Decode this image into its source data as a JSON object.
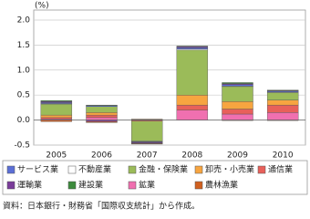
{
  "chart_data": {
    "type": "stacked_bar",
    "unit_label": "(%)",
    "categories": [
      "2005",
      "2006",
      "2007",
      "2008",
      "2009",
      "2010"
    ],
    "series": [
      {
        "name": "サービス業",
        "color": "#5b6fd6",
        "values": [
          0.02,
          0.02,
          -0.01,
          0.03,
          0.03,
          0.02
        ]
      },
      {
        "name": "不動産業",
        "color": "#ffffff",
        "values": [
          0.01,
          0.0,
          -0.01,
          0.02,
          0.01,
          0.01
        ]
      },
      {
        "name": "金融・保険業",
        "color": "#9bbb59",
        "values": [
          0.22,
          0.12,
          -0.4,
          0.9,
          0.3,
          0.15
        ]
      },
      {
        "name": "卸売・小売業",
        "color": "#f7a540",
        "values": [
          0.05,
          0.05,
          0.01,
          0.2,
          0.15,
          0.1
        ]
      },
      {
        "name": "通信業",
        "color": "#e8605a",
        "values": [
          0.03,
          0.05,
          -0.02,
          0.1,
          0.1,
          0.15
        ]
      },
      {
        "name": "運輸業",
        "color": "#7a3c9a",
        "values": [
          0.02,
          -0.03,
          -0.02,
          0.02,
          0.02,
          0.01
        ]
      },
      {
        "name": "建設業",
        "color": "#3c8a3c",
        "values": [
          0.02,
          0.01,
          -0.01,
          0.01,
          0.02,
          0.01
        ]
      },
      {
        "name": "鉱業",
        "color": "#f070b0",
        "values": [
          0.02,
          0.05,
          0.01,
          0.2,
          0.12,
          0.15
        ]
      },
      {
        "name": "農林漁業",
        "color": "#d06020",
        "values": [
          -0.03,
          -0.02,
          -0.01,
          0.0,
          -0.01,
          -0.01
        ]
      }
    ],
    "ylim": [
      -0.5,
      2.2
    ],
    "yticks": [
      -0.5,
      {
        "value": 0,
        "label": "0.0"
      },
      0.5,
      {
        "value": 1,
        "label": "1.0"
      },
      1.5,
      {
        "value": 2,
        "label": "2.0"
      }
    ],
    "grid": true,
    "note": "資料：日本銀行・財務省「国際収支統計」から作成。"
  }
}
